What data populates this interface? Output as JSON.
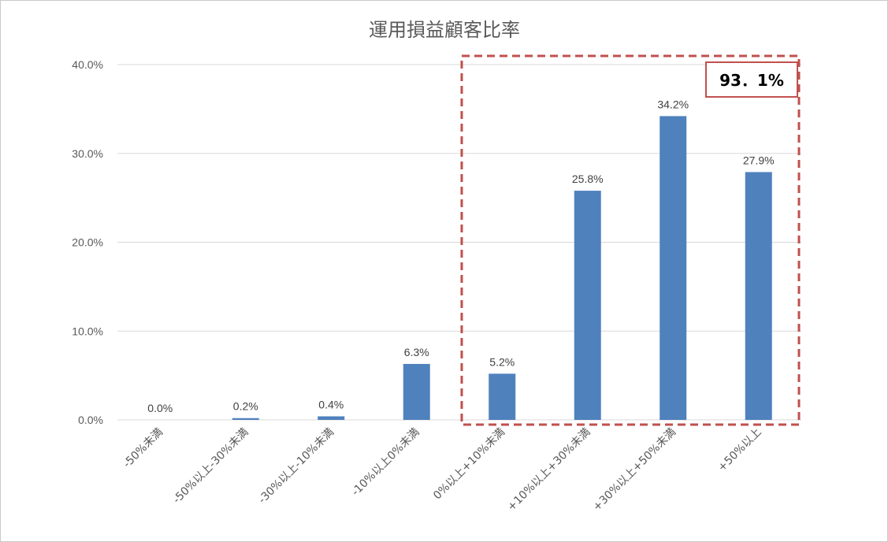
{
  "chart_data": {
    "type": "bar",
    "title": "運用損益顧客比率",
    "xlabel": "",
    "ylabel": "",
    "categories": [
      "-50%未満",
      "-50%以上-30%未満",
      "-30%以上-10%未満",
      "-10%以上0%未満",
      "0%以上+10%未満",
      "+10%以上+30%未満",
      "+30%以上+50%未満",
      "+50%以上"
    ],
    "values": [
      0.0,
      0.2,
      0.4,
      6.3,
      5.2,
      25.8,
      34.2,
      27.9
    ],
    "data_labels": [
      "0.0%",
      "0.2%",
      "0.4%",
      "6.3%",
      "5.2%",
      "25.8%",
      "34.2%",
      "27.9%"
    ],
    "ylim": [
      0,
      40
    ],
    "yticks": [
      0,
      10,
      20,
      30,
      40
    ],
    "ytick_labels": [
      "0.0%",
      "10.0%",
      "20.0%",
      "30.0%",
      "40.0%"
    ],
    "grid": true,
    "legend": "none",
    "callout": {
      "text": "93．1%",
      "covers_categories": [
        4,
        5,
        6,
        7
      ]
    },
    "colors": {
      "bar": "#4f81bd",
      "grid": "#d9d9d9",
      "highlight": "#c0504d"
    }
  }
}
